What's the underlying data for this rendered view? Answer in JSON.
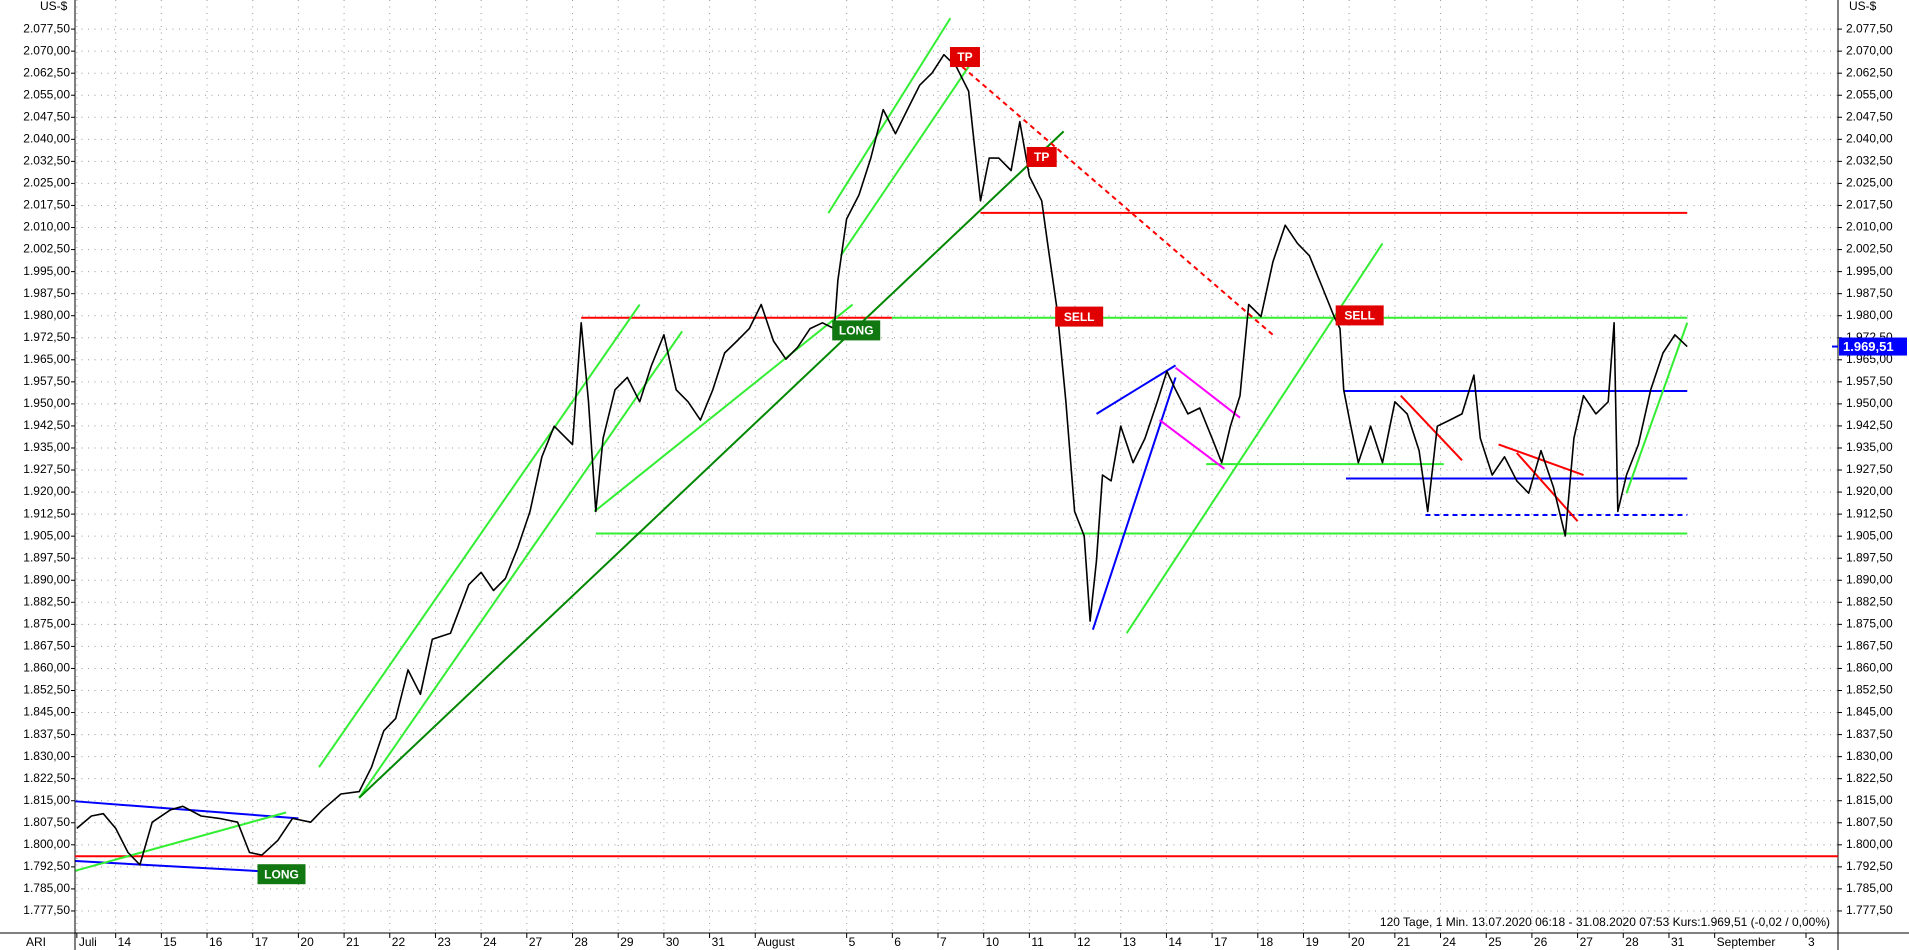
{
  "chart_data": {
    "type": "line",
    "symbol": "ARI",
    "ylabel": "US-$",
    "info": "120 Tage, 1 Min. 13.07.2020 06:18 - 31.08.2020 07:53 Kurs:1.969,51 (-0,02 / 0,00%)",
    "color": "#000000",
    "grid": true,
    "xlim": [
      -0.89,
      37.7
    ],
    "ylim": [
      1770,
      2087.4
    ],
    "xticks": [
      {
        "value": -0.85,
        "label": "Juli"
      },
      {
        "value": 0,
        "label": "14"
      },
      {
        "value": 1,
        "label": "15"
      },
      {
        "value": 2,
        "label": "16"
      },
      {
        "value": 3,
        "label": "17"
      },
      {
        "value": 4,
        "label": "20"
      },
      {
        "value": 5,
        "label": "21"
      },
      {
        "value": 6,
        "label": "22"
      },
      {
        "value": 7,
        "label": "23"
      },
      {
        "value": 8,
        "label": "24"
      },
      {
        "value": 9,
        "label": "27"
      },
      {
        "value": 10,
        "label": "28"
      },
      {
        "value": 11,
        "label": "29"
      },
      {
        "value": 12,
        "label": "30"
      },
      {
        "value": 13,
        "label": "31"
      },
      {
        "value": 14,
        "label": "August"
      },
      {
        "value": 16,
        "label": "5"
      },
      {
        "value": 17,
        "label": "6"
      },
      {
        "value": 18,
        "label": "7"
      },
      {
        "value": 19,
        "label": "10"
      },
      {
        "value": 20,
        "label": "11"
      },
      {
        "value": 21,
        "label": "12"
      },
      {
        "value": 22,
        "label": "13"
      },
      {
        "value": 23,
        "label": "14"
      },
      {
        "value": 24,
        "label": "17"
      },
      {
        "value": 25,
        "label": "18"
      },
      {
        "value": 26,
        "label": "19"
      },
      {
        "value": 27,
        "label": "20"
      },
      {
        "value": 28,
        "label": "21"
      },
      {
        "value": 29,
        "label": "24"
      },
      {
        "value": 30,
        "label": "25"
      },
      {
        "value": 31,
        "label": "26"
      },
      {
        "value": 32,
        "label": "27"
      },
      {
        "value": 33,
        "label": "28"
      },
      {
        "value": 34,
        "label": "31"
      },
      {
        "value": 35,
        "label": "September"
      },
      {
        "value": 37,
        "label": "3"
      }
    ],
    "yticks": [
      {
        "value": 1777.5,
        "label": "1.777,50"
      },
      {
        "value": 1785,
        "label": "1.785,00"
      },
      {
        "value": 1792.5,
        "label": "1.792,50"
      },
      {
        "value": 1800,
        "label": "1.800,00"
      },
      {
        "value": 1807.5,
        "label": "1.807,50"
      },
      {
        "value": 1815,
        "label": "1.815,00"
      },
      {
        "value": 1822.5,
        "label": "1.822,50"
      },
      {
        "value": 1830,
        "label": "1.830,00"
      },
      {
        "value": 1837.5,
        "label": "1.837,50"
      },
      {
        "value": 1845,
        "label": "1.845,00"
      },
      {
        "value": 1852.5,
        "label": "1.852,50"
      },
      {
        "value": 1860,
        "label": "1.860,00"
      },
      {
        "value": 1867.5,
        "label": "1.867,50"
      },
      {
        "value": 1875,
        "label": "1.875,00"
      },
      {
        "value": 1882.5,
        "label": "1.882,50"
      },
      {
        "value": 1890,
        "label": "1.890,00"
      },
      {
        "value": 1897.5,
        "label": "1.897,50"
      },
      {
        "value": 1905,
        "label": "1.905,00"
      },
      {
        "value": 1912.5,
        "label": "1.912,50"
      },
      {
        "value": 1920,
        "label": "1.920,00"
      },
      {
        "value": 1927.5,
        "label": "1.927,50"
      },
      {
        "value": 1935,
        "label": "1.935,00"
      },
      {
        "value": 1942.5,
        "label": "1.942,50"
      },
      {
        "value": 1950,
        "label": "1.950,00"
      },
      {
        "value": 1957.5,
        "label": "1.957,50"
      },
      {
        "value": 1965,
        "label": "1.965,00"
      },
      {
        "value": 1972.5,
        "label": "1.972,50"
      },
      {
        "value": 1980,
        "label": "1.980,00"
      },
      {
        "value": 1987.5,
        "label": "1.987,50"
      },
      {
        "value": 1995,
        "label": "1.995,00"
      },
      {
        "value": 2002.5,
        "label": "2.002,50"
      },
      {
        "value": 2010,
        "label": "2.010,00"
      },
      {
        "value": 2017.5,
        "label": "2.017,50"
      },
      {
        "value": 2025,
        "label": "2.025,00"
      },
      {
        "value": 2032.5,
        "label": "2.032,50"
      },
      {
        "value": 2040,
        "label": "2.040,00"
      },
      {
        "value": 2047.5,
        "label": "2.047,50"
      },
      {
        "value": 2055,
        "label": "2.055,00"
      },
      {
        "value": 2062.5,
        "label": "2.062,50"
      },
      {
        "value": 2070,
        "label": "2.070,00"
      },
      {
        "value": 2077.5,
        "label": "2.077,50"
      }
    ],
    "last_price": {
      "value": 1969.51,
      "label": "1.969,51",
      "color": "#0000ff"
    },
    "x": [
      -0.85,
      -0.53,
      -0.27,
      0,
      0.27,
      0.53,
      0.8,
      1.2,
      1.47,
      1.87,
      2.27,
      2.67,
      2.93,
      3.2,
      3.55,
      3.87,
      4.27,
      4.53,
      4.93,
      5.33,
      5.6,
      5.87,
      6.13,
      6.4,
      6.67,
      6.93,
      7.33,
      7.73,
      8,
      8.27,
      8.53,
      8.8,
      9.07,
      9.33,
      9.6,
      10,
      10.19,
      10.35,
      10.51,
      10.67,
      10.93,
      11.2,
      11.47,
      11.73,
      12,
      12.27,
      12.53,
      12.8,
      13.07,
      13.33,
      13.6,
      13.87,
      14.13,
      14.4,
      14.67,
      14.93,
      15.2,
      15.47,
      15.73,
      15.81,
      16,
      16.27,
      16.53,
      16.8,
      17.07,
      17.33,
      17.6,
      17.87,
      18.13,
      18.4,
      18.67,
      18.8,
      18.93,
      19.12,
      19.33,
      19.6,
      19.79,
      20,
      20.27,
      20.4,
      20.61,
      20.8,
      20.99,
      21.2,
      21.33,
      21.47,
      21.6,
      21.79,
      22,
      22.27,
      22.53,
      22.8,
      23.01,
      23.2,
      23.47,
      23.73,
      24,
      24.21,
      24.4,
      24.61,
      24.8,
      25.07,
      25.33,
      25.6,
      25.87,
      26.13,
      26.4,
      26.67,
      26.8,
      26.88,
      27.01,
      27.2,
      27.47,
      27.73,
      28,
      28.27,
      28.53,
      28.72,
      28.93,
      29.2,
      29.47,
      29.73,
      29.87,
      30.13,
      30.4,
      30.67,
      30.93,
      31.2,
      31.47,
      31.73,
      31.92,
      32.13,
      32.4,
      32.67,
      32.8,
      32.88,
      33.07,
      33.33,
      33.6,
      33.87,
      34.13,
      34.4
    ],
    "values": [
      1805.6,
      1809.8,
      1810.6,
      1805.6,
      1797.4,
      1793.2,
      1807.7,
      1811.9,
      1813.1,
      1809.8,
      1809.0,
      1807.7,
      1797.4,
      1796.5,
      1801.5,
      1809.0,
      1807.7,
      1811.9,
      1817.3,
      1818.1,
      1826.4,
      1838.8,
      1843.0,
      1859.5,
      1851.2,
      1869.9,
      1872.0,
      1888.5,
      1892.7,
      1886.5,
      1890.6,
      1901.0,
      1913.4,
      1932.0,
      1942.4,
      1936.2,
      1977.6,
      1950.7,
      1913.4,
      1938.3,
      1954.8,
      1959.0,
      1950.7,
      1963.1,
      1973.5,
      1954.8,
      1950.7,
      1944.5,
      1954.8,
      1967.3,
      1971.4,
      1975.6,
      1983.8,
      1971.4,
      1965.2,
      1969.3,
      1975.6,
      1977.6,
      1975.6,
      1992.1,
      2012.9,
      2021.1,
      2033.6,
      2050.1,
      2041.9,
      2050.1,
      2058.4,
      2062.6,
      2068.8,
      2064.7,
      2056.4,
      2037.7,
      2019.1,
      2033.6,
      2033.6,
      2029.4,
      2046.0,
      2027.4,
      2019.1,
      2004.6,
      1981.8,
      1950.7,
      1913.4,
      1905.1,
      1876.1,
      1896.8,
      1925.8,
      1923.8,
      1942.4,
      1930.0,
      1938.3,
      1950.7,
      1961.1,
      1954.8,
      1946.6,
      1948.6,
      1938.3,
      1930.0,
      1942.4,
      1952.8,
      1983.8,
      1979.7,
      1998.3,
      2010.8,
      2004.6,
      2000.4,
      1990.1,
      1979.7,
      1975.6,
      1954.8,
      1944.5,
      1930.0,
      1942.4,
      1930.0,
      1950.7,
      1946.6,
      1934.1,
      1913.4,
      1942.4,
      1944.5,
      1946.6,
      1959.8,
      1938.3,
      1925.8,
      1932.0,
      1923.8,
      1919.6,
      1934.1,
      1921.7,
      1905.1,
      1938.3,
      1952.8,
      1946.6,
      1950.7,
      1977.6,
      1913.4,
      1925.8,
      1936.2,
      1954.8,
      1967.3,
      1973.5,
      1969.5
    ],
    "drawings": [
      {
        "x": [
          -0.89,
          37.7
        ],
        "y": [
          1796.1,
          1796.1
        ],
        "color": "#ff0000"
      },
      {
        "x": [
          18.93,
          34.4
        ],
        "y": [
          2015.0,
          2015.0
        ],
        "color": "#ff0000"
      },
      {
        "x": [
          10.19,
          16.99
        ],
        "y": [
          1979.3,
          1979.3
        ],
        "color": "#ff0000"
      },
      {
        "x": [
          16.99,
          34.4
        ],
        "y": [
          1979.3,
          1979.3
        ],
        "color": "#33ee33"
      },
      {
        "x": [
          10.51,
          34.4
        ],
        "y": [
          1905.9,
          1905.9
        ],
        "color": "#33ee33"
      },
      {
        "x": [
          26.88,
          34.4
        ],
        "y": [
          1954.4,
          1954.4
        ],
        "color": "#0000ff"
      },
      {
        "x": [
          26.93,
          34.4
        ],
        "y": [
          1924.6,
          1924.6
        ],
        "color": "#0000ff"
      },
      {
        "x": [
          28.67,
          34.4
        ],
        "y": [
          1912.2,
          1912.2
        ],
        "color": "#0000ff",
        "dash": true
      },
      {
        "x": [
          23.87,
          29.07
        ],
        "y": [
          1929.5,
          1929.5
        ],
        "color": "#33ee33"
      },
      {
        "x": [
          -0.88,
          4
        ],
        "y": [
          1814.8,
          1809.0
        ],
        "color": "#0000ff"
      },
      {
        "x": [
          -0.88,
          4
        ],
        "y": [
          1794.5,
          1790.3
        ],
        "color": "#0000ff"
      },
      {
        "x": [
          -0.88,
          3.73
        ],
        "y": [
          1791.2,
          1811.0
        ],
        "color": "#33ee33"
      },
      {
        "x": [
          4.45,
          11.47
        ],
        "y": [
          1826.4,
          1983.8
        ],
        "color": "#33ee33"
      },
      {
        "x": [
          5.33,
          12.4
        ],
        "y": [
          1816.0,
          1974.7
        ],
        "color": "#33ee33"
      },
      {
        "x": [
          10.48,
          16.13
        ],
        "y": [
          1913.4,
          1983.8
        ],
        "color": "#33ee33"
      },
      {
        "x": [
          5.33,
          20.75
        ],
        "y": [
          1816.0,
          2042.7
        ],
        "color": "#008800"
      },
      {
        "x": [
          15.6,
          18.27
        ],
        "y": [
          2014.9,
          2081.2
        ],
        "color": "#33ee33"
      },
      {
        "x": [
          15.87,
          18.67
        ],
        "y": [
          2000.4,
          2064.7
        ],
        "color": "#33ee33"
      },
      {
        "x": [
          18.53,
          25.33
        ],
        "y": [
          2064.7,
          1973.5
        ],
        "color": "#ff0000",
        "dash": true
      },
      {
        "x": [
          21.39,
          23.2
        ],
        "y": [
          1873.2,
          1959.0
        ],
        "color": "#0000ff"
      },
      {
        "x": [
          21.47,
          23.2
        ],
        "y": [
          1946.6,
          1963.1
        ],
        "color": "#0000ff"
      },
      {
        "x": [
          23.2,
          24.61
        ],
        "y": [
          1962.3,
          1945.3
        ],
        "color": "#ff00ff"
      },
      {
        "x": [
          22.85,
          24.27
        ],
        "y": [
          1944.5,
          1927.9
        ],
        "color": "#ff00ff"
      },
      {
        "x": [
          22.13,
          27.73
        ],
        "y": [
          1872.0,
          2004.6
        ],
        "color": "#33ee33"
      },
      {
        "x": [
          28.13,
          29.47
        ],
        "y": [
          1952.8,
          1930.8
        ],
        "color": "#ff0000"
      },
      {
        "x": [
          30.27,
          32.13
        ],
        "y": [
          1936.2,
          1925.8
        ],
        "color": "#ff0000"
      },
      {
        "x": [
          30.67,
          32
        ],
        "y": [
          1933.3,
          1910.1
        ],
        "color": "#ff0000"
      },
      {
        "x": [
          33.07,
          34.4
        ],
        "y": [
          1919.6,
          1977.6
        ],
        "color": "#33ee33"
      }
    ],
    "annotations": [
      {
        "text": "TP",
        "x": 18.59,
        "y": 2068.0,
        "color": "#e00000"
      },
      {
        "text": "TP",
        "x": 20.27,
        "y": 2034.0,
        "color": "#e00000"
      },
      {
        "text": "SELL",
        "x": 21.09,
        "y": 1979.7,
        "color": "#e00000"
      },
      {
        "text": "SELL",
        "x": 27.23,
        "y": 1980.1,
        "color": "#e00000"
      },
      {
        "text": "LONG",
        "x": 16.21,
        "y": 1975.0,
        "color": "#117711"
      },
      {
        "text": "LONG",
        "x": 3.63,
        "y": 1790.0,
        "color": "#117711"
      }
    ]
  }
}
